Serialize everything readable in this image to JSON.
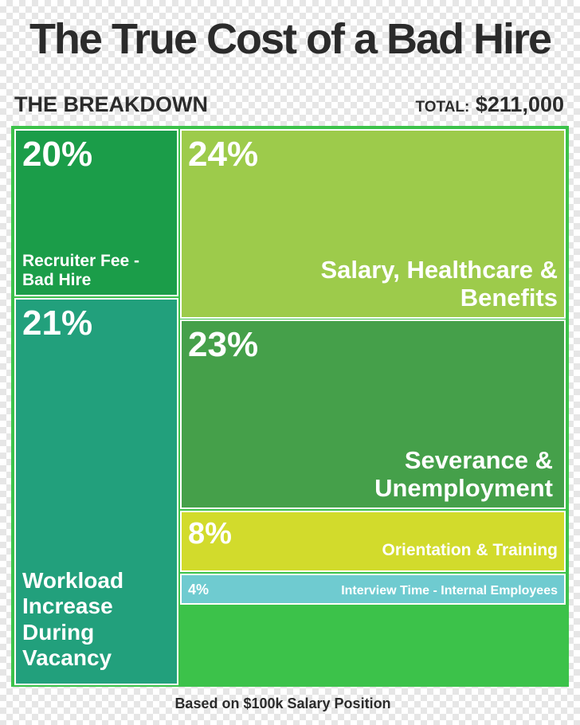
{
  "chart_data": {
    "type": "treemap",
    "title": "The True Cost of a Bad Hire",
    "subtitle": "THE BREAKDOWN",
    "total_label": "TOTAL:",
    "total": "$211,000",
    "footnote": "Based on $100k Salary Position",
    "categories": [
      "Recruiter Fee - Bad Hire",
      "Salary, Healthcare & Benefits",
      "Workload Increase During Vacancy",
      "Severance & Unemployment",
      "Orientation & Training",
      "Interview Time - Internal Employees"
    ],
    "values": [
      20,
      24,
      21,
      23,
      8,
      4
    ],
    "value_labels": [
      "20%",
      "24%",
      "21%",
      "23%",
      "8%",
      "4%"
    ],
    "colors": [
      "#1b9d49",
      "#9dcb4b",
      "#22a07c",
      "#45a04a",
      "#d2db2c",
      "#6fcbd0"
    ]
  }
}
